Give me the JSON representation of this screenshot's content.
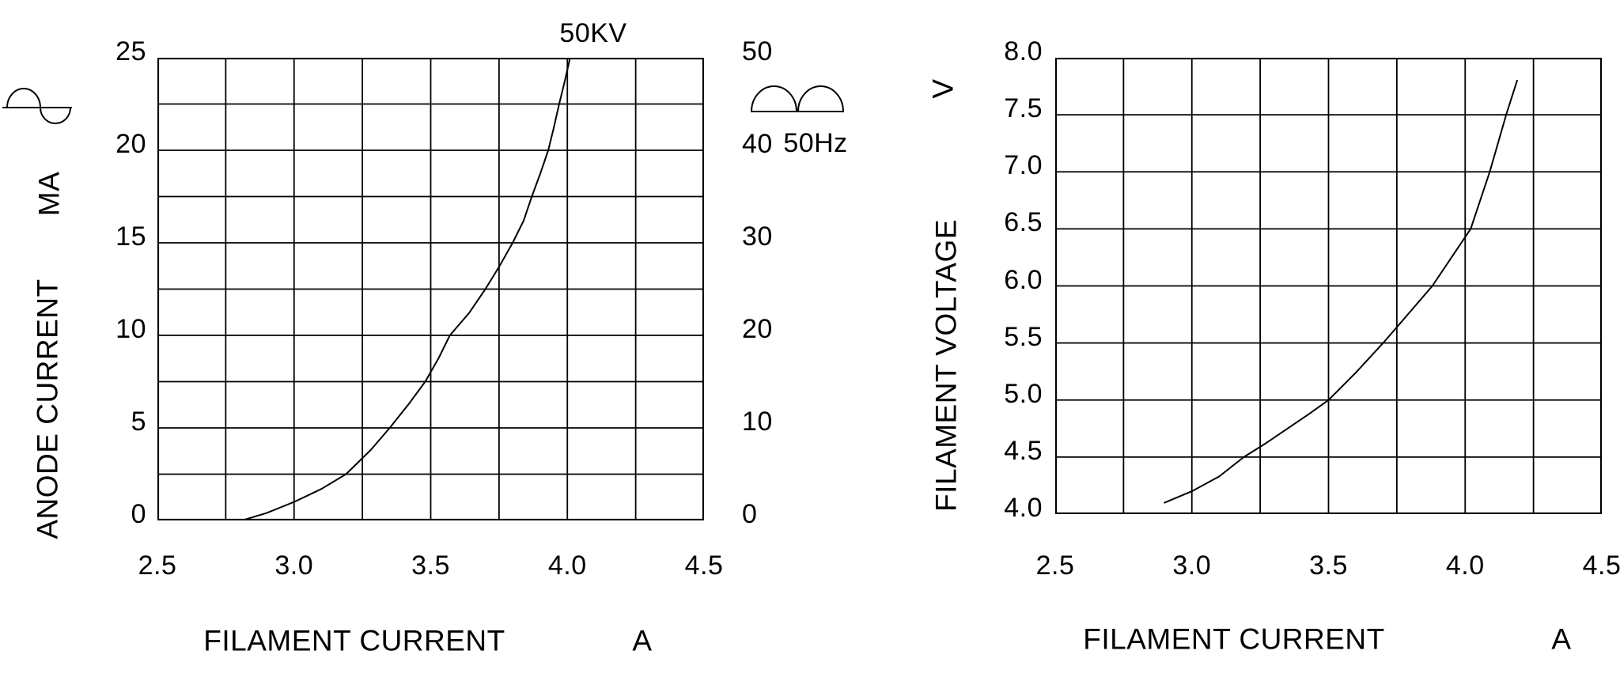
{
  "figure": {
    "background": "#ffffff",
    "ink": "#000000"
  },
  "chart_data": [
    {
      "type": "line",
      "curve_label": "50KV",
      "xlabel": "FILAMENT CURRENT",
      "x_unit": "A",
      "ylabel": "ANODE CURRENT",
      "y_unit": "MA",
      "xlim": [
        2.5,
        4.5
      ],
      "ylim": [
        0,
        25
      ],
      "x_grid_step": 0.25,
      "y_grid_step": 2.5,
      "x_ticks": [
        "2.5",
        "3.0",
        "3.5",
        "4.0",
        "4.5"
      ],
      "y_ticks": [
        "0",
        "5",
        "10",
        "15",
        "20",
        "25"
      ],
      "grid": true,
      "legend_position": "none",
      "left_icon": "ac-sine-wave",
      "right_axis": {
        "label": "50Hz",
        "lim": [
          0,
          50
        ],
        "ticks": [
          "0",
          "10",
          "20",
          "30",
          "40",
          "50"
        ],
        "waveform_icon": "full-wave-rectified-sine"
      },
      "series": [
        {
          "name": "50KV",
          "x": [
            2.81,
            2.9,
            3.0,
            3.1,
            3.19,
            3.28,
            3.35,
            3.42,
            3.48,
            3.53,
            3.57,
            3.64,
            3.7,
            3.75,
            3.8,
            3.84,
            3.87,
            3.9,
            3.93,
            3.95,
            3.97,
            3.99,
            4.01
          ],
          "y": [
            0,
            0.4,
            1.0,
            1.7,
            2.5,
            3.8,
            5.0,
            6.3,
            7.5,
            8.8,
            10.0,
            11.2,
            12.5,
            13.7,
            15.0,
            16.2,
            17.5,
            18.7,
            20.0,
            21.2,
            22.5,
            23.7,
            25.0
          ]
        }
      ]
    },
    {
      "type": "line",
      "xlabel": "FILAMENT CURRENT",
      "x_unit": "A",
      "ylabel": "FILAMENT VOLTAGE",
      "y_unit": "V",
      "xlim": [
        2.5,
        4.5
      ],
      "ylim": [
        4.0,
        8.0
      ],
      "x_grid_step": 0.25,
      "y_grid_step": 0.5,
      "x_ticks": [
        "2.5",
        "3.0",
        "3.5",
        "4.0",
        "4.5"
      ],
      "y_ticks": [
        "4.0",
        "4.5",
        "5.0",
        "5.5",
        "6.0",
        "6.5",
        "7.0",
        "7.5",
        "8.0"
      ],
      "grid": true,
      "legend_position": "none",
      "series": [
        {
          "name": "filament voltage",
          "x": [
            2.9,
            3.0,
            3.1,
            3.19,
            3.27,
            3.35,
            3.43,
            3.5,
            3.6,
            3.7,
            3.79,
            3.88,
            3.95,
            4.02,
            4.09,
            4.15,
            4.19
          ],
          "y": [
            4.1,
            4.2,
            4.33,
            4.5,
            4.62,
            4.75,
            4.88,
            5.0,
            5.24,
            5.5,
            5.75,
            6.0,
            6.25,
            6.5,
            7.0,
            7.5,
            7.8
          ]
        }
      ]
    }
  ]
}
